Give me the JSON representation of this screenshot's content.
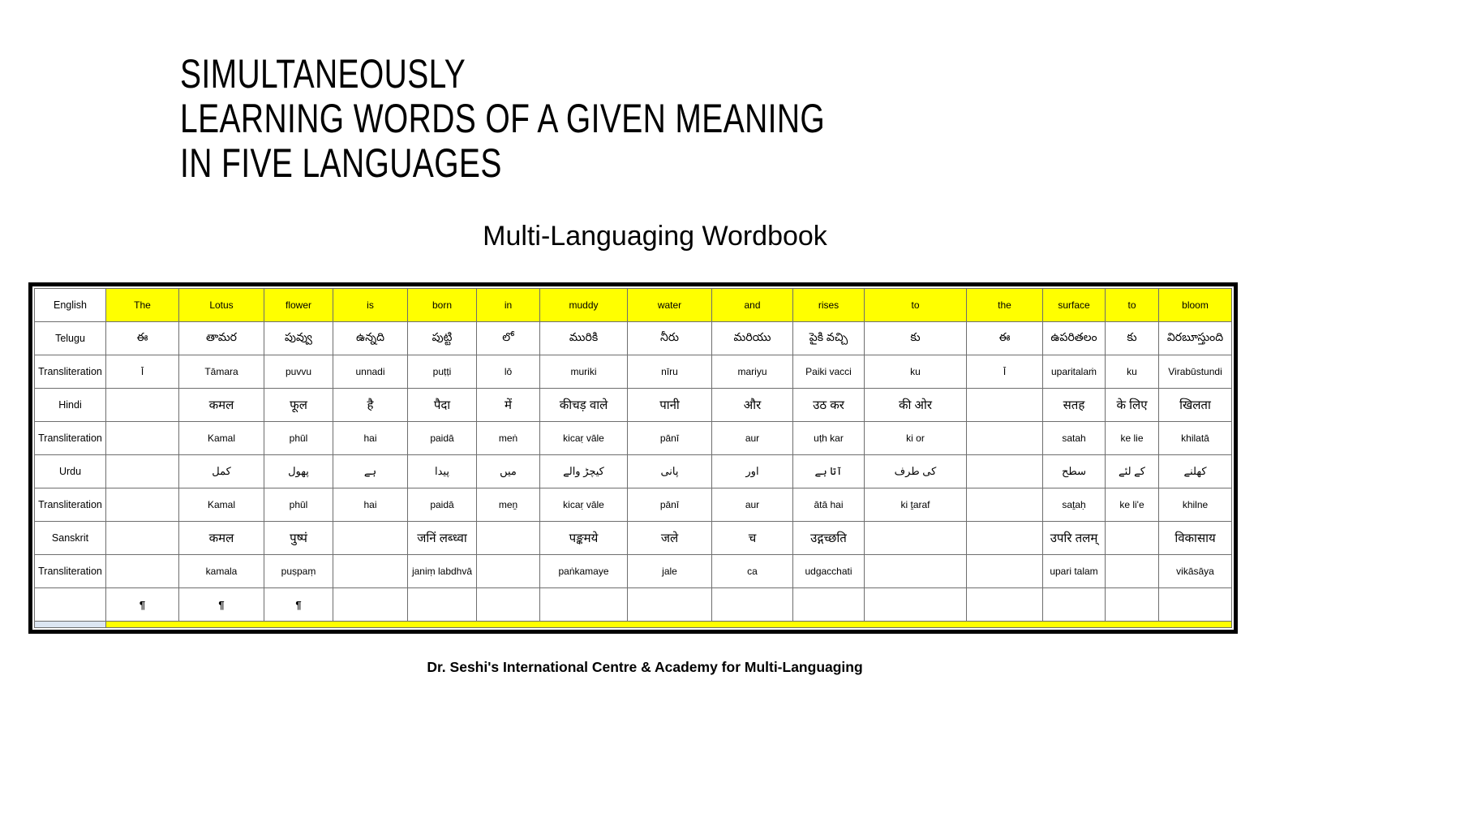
{
  "slide": {
    "title_lines": [
      "SIMULTANEOUSLY",
      "LEARNING WORDS OF A GIVEN MEANING",
      "IN FIVE LANGUAGES"
    ],
    "subtitle": "Multi-Languaging Wordbook",
    "footer": "Dr. Seshi's International Centre & Academy for Multi-Languaging"
  },
  "colors": {
    "highlight_yellow": "#FFFF00",
    "grid_line": "#6e6e6e",
    "frame": "#000000",
    "corner_tint": "#dce6f2"
  },
  "wordbook_table": {
    "rows": [
      {
        "label": "English",
        "lang": "en",
        "highlight": true,
        "cells": [
          "The",
          "Lotus",
          "flower",
          "is",
          "born",
          "in",
          "muddy",
          "water",
          "and",
          "rises",
          "to",
          "the",
          "surface",
          "to",
          "bloom"
        ]
      },
      {
        "label": "Telugu",
        "lang": "te",
        "highlight": false,
        "cells": [
          "ఈ",
          "తామర",
          "పువ్వు",
          "ఉన్నది",
          "పుట్టి",
          "లో",
          "మురికి",
          "నీరు",
          "మరియు",
          "పైకి వచ్చి",
          "కు",
          "ఈ",
          "ఉపరితలం",
          "కు",
          "విరబూస్తుంది"
        ]
      },
      {
        "label": "Transliteration",
        "lang": "translit",
        "highlight": false,
        "cells": [
          "Ī",
          "Tāmara",
          "puvvu",
          "unnadi",
          "puṭṭi",
          "lō",
          "muriki",
          "nīru",
          "mariyu",
          "Paiki vacci",
          "ku",
          "Ī",
          "uparitalaṁ",
          "ku",
          "Virabūstundi"
        ]
      },
      {
        "label": "Hindi",
        "lang": "hi",
        "highlight": false,
        "cells": [
          "",
          "कमल",
          "फूल",
          "है",
          "पैदा",
          "में",
          "कीचड़ वाले",
          "पानी",
          "और",
          "उठ कर",
          "की ओर",
          "",
          "सतह",
          "के लिए",
          "खिलता"
        ]
      },
      {
        "label": "Transliteration",
        "lang": "translit",
        "highlight": false,
        "cells": [
          "",
          "Kamal",
          "phūl",
          "hai",
          "paidā",
          "meṅ",
          "kicaṛ vāle",
          "pānī",
          "aur",
          "uṭh kar",
          "ki or",
          "",
          "satah",
          "ke lie",
          "khilatā"
        ]
      },
      {
        "label": "Urdu",
        "lang": "ur",
        "highlight": false,
        "cells": [
          "",
          "کمل",
          "پھول",
          "ہے",
          "پیدا",
          "میں",
          "کیچڑ والے",
          "پانی",
          "اور",
          "آتا ہے",
          "کی طرف",
          "",
          "سطح",
          "کے لئے",
          "کھلنے"
        ]
      },
      {
        "label": "Transliteration",
        "lang": "translit",
        "highlight": false,
        "cells": [
          "",
          "Kamal",
          "phūl",
          "hai",
          "paidā",
          "meṉ",
          "kicaṛ vāle",
          "pānī",
          "aur",
          "ātā hai",
          "ki ṯaraf",
          "",
          "saṯaḥ",
          "ke li'e",
          "khilne"
        ]
      },
      {
        "label": "Sanskrit",
        "lang": "sa",
        "highlight": false,
        "cells": [
          "",
          "कमल",
          "पुष्पं",
          "",
          "जनिं लब्ध्वा",
          "",
          "पङ्कमये",
          "जले",
          "च",
          "उद्गच्छति",
          "",
          "",
          "उपरि तलम्",
          "",
          "विकासाय"
        ]
      },
      {
        "label": "Transliteration",
        "lang": "translit",
        "highlight": false,
        "cells": [
          "",
          "kamala",
          "puṣpaṃ",
          "",
          "janiṃ labdhvā",
          "",
          "paṅkamaye",
          "jale",
          "ca",
          "udgacchati",
          "",
          "",
          "upari talam",
          "",
          "vikāsāya"
        ]
      },
      {
        "label": "",
        "lang": "pilcrow",
        "highlight": false,
        "cells": [
          "¶",
          "¶",
          "¶",
          "",
          "",
          "",
          "",
          "",
          "",
          "",
          "",
          "",
          "",
          "",
          ""
        ]
      }
    ]
  }
}
